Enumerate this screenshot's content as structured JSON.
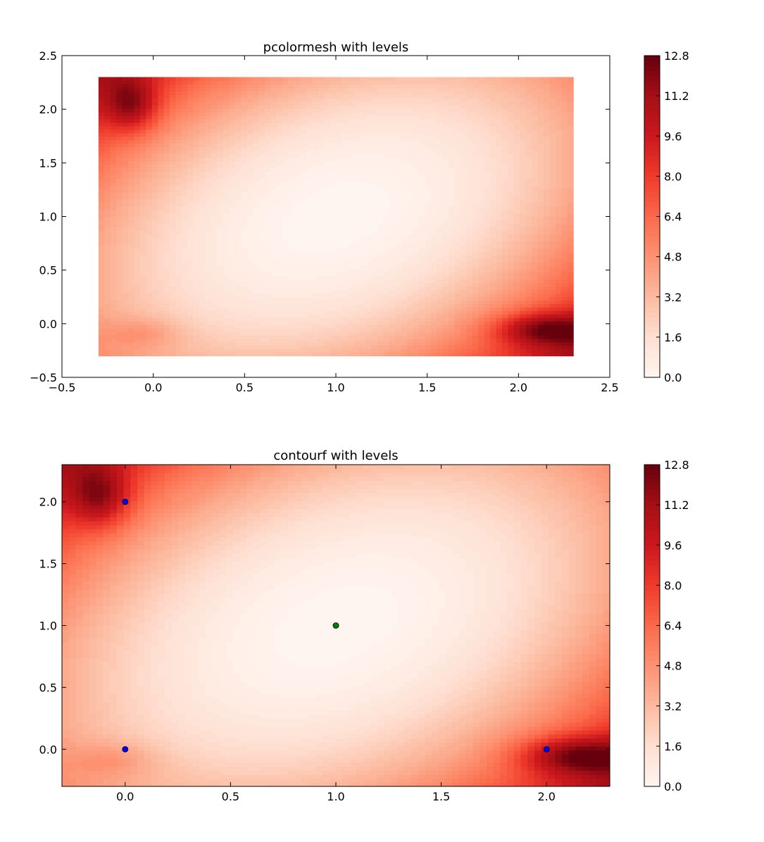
{
  "chart_data": [
    {
      "type": "heatmap",
      "title": "pcolormesh with levels",
      "xlabel": "",
      "ylabel": "",
      "xlim": [
        -0.5,
        2.5
      ],
      "ylim": [
        -0.5,
        2.5
      ],
      "data_extent": {
        "x": [
          -0.3,
          2.3
        ],
        "y": [
          -0.3,
          2.3
        ]
      },
      "grid": false,
      "colormap": "Reds",
      "xticks": [
        -0.5,
        0.0,
        0.5,
        1.0,
        1.5,
        2.0,
        2.5
      ],
      "xtick_labels": [
        "−0.5",
        "0.0",
        "0.5",
        "1.0",
        "1.5",
        "2.0",
        "2.5"
      ],
      "yticks": [
        -0.5,
        0.0,
        0.5,
        1.0,
        1.5,
        2.0,
        2.5
      ],
      "ytick_labels": [
        "−0.5",
        "0.0",
        "0.5",
        "1.0",
        "1.5",
        "2.0",
        "2.5"
      ],
      "colorbar": {
        "range": [
          0.0,
          12.8
        ],
        "ticks": [
          0.0,
          1.6,
          3.2,
          4.8,
          6.4,
          8.0,
          9.6,
          11.2,
          12.8
        ],
        "tick_labels": [
          "0.0",
          "1.6",
          "3.2",
          "4.8",
          "6.4",
          "8.0",
          "9.6",
          "11.2",
          "12.8"
        ]
      },
      "points": []
    },
    {
      "type": "heatmap",
      "title": "contourf with levels",
      "xlabel": "",
      "ylabel": "",
      "xlim": [
        -0.3,
        2.3
      ],
      "ylim": [
        -0.3,
        2.3
      ],
      "data_extent": {
        "x": [
          -0.3,
          2.3
        ],
        "y": [
          -0.3,
          2.3
        ]
      },
      "grid": false,
      "colormap": "Reds",
      "xticks": [
        0.0,
        0.5,
        1.0,
        1.5,
        2.0
      ],
      "xtick_labels": [
        "0.0",
        "0.5",
        "1.0",
        "1.5",
        "2.0"
      ],
      "yticks": [
        0.0,
        0.5,
        1.0,
        1.5,
        2.0
      ],
      "ytick_labels": [
        "0.0",
        "0.5",
        "1.0",
        "1.5",
        "2.0"
      ],
      "colorbar": {
        "range": [
          0.0,
          12.8
        ],
        "ticks": [
          0.0,
          1.6,
          3.2,
          4.8,
          6.4,
          8.0,
          9.6,
          11.2,
          12.8
        ],
        "tick_labels": [
          "0.0",
          "1.6",
          "3.2",
          "4.8",
          "6.4",
          "8.0",
          "9.6",
          "11.2",
          "12.8"
        ]
      },
      "points": [
        {
          "x": 0.0,
          "y": 2.0,
          "color": "#0000ff"
        },
        {
          "x": 0.0,
          "y": 0.0,
          "color": "#0000ff"
        },
        {
          "x": 2.0,
          "y": 0.0,
          "color": "#0000ff"
        },
        {
          "x": 1.0,
          "y": 1.0,
          "color": "#008000"
        }
      ]
    }
  ]
}
